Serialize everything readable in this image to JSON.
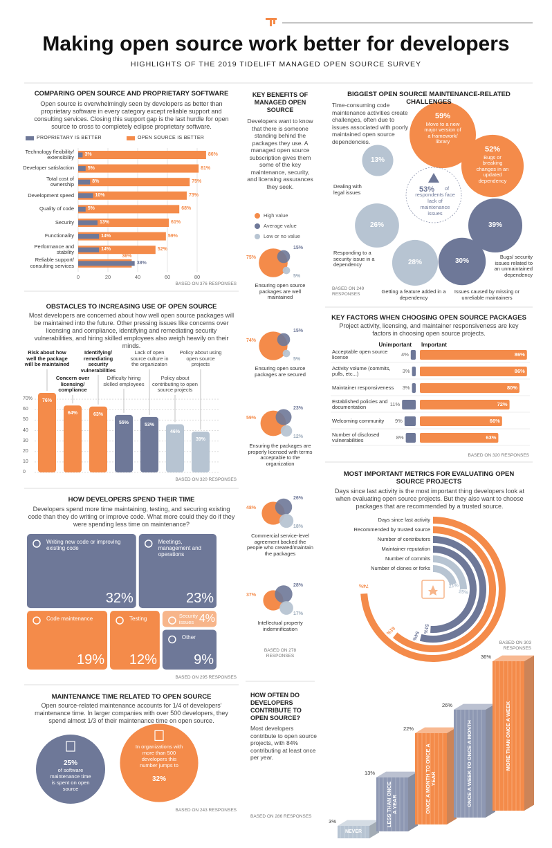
{
  "header": {
    "title": "Making open source work better for developers",
    "subtitle": "HIGHLIGHTS OF THE 2019 TIDELIFT MANAGED OPEN SOURCE SURVEY"
  },
  "comparison": {
    "type": "bar",
    "title": "COMPARING OPEN SOURCE AND PROPRIETARY SOFTWARE",
    "text": "Open source is overwhelmingly seen by developers as better than proprietary software in every category except reliable support and consulting services. Closing this support gap is the last hurdle for open source to cross to completely eclipse proprietary software.",
    "categories": [
      "Technology flexibility/ extensibility",
      "Developer satisfaction",
      "Total cost of ownership",
      "Development speed",
      "Quality of code",
      "Security",
      "Functionality",
      "Performance and stability",
      "Reliable support/ consulting services"
    ],
    "series": [
      {
        "name": "PROPRIETARY IS BETTER",
        "color": "#6e7898",
        "values": [
          3,
          5,
          8,
          10,
          5,
          13,
          14,
          14,
          38
        ],
        "value_labels": [
          "3%",
          "5%",
          "8%",
          "10%",
          "5%",
          "13%",
          "14%",
          "14%",
          "38%"
        ]
      },
      {
        "name": "OPEN SOURCE IS BETTER",
        "color": "#f48b4a",
        "values": [
          86,
          81,
          75,
          73,
          68,
          61,
          59,
          52,
          36
        ],
        "value_labels": [
          "86%",
          "81%",
          "75%",
          "73%",
          "68%",
          "61%",
          "59%",
          "52%",
          "36%"
        ]
      }
    ],
    "xlim": [
      0,
      90
    ],
    "xticks": [
      0,
      20,
      40,
      60,
      80
    ],
    "note": "BASED ON 376 RESPONSES"
  },
  "obstacles": {
    "type": "bar",
    "title": "OBSTACLES TO INCREASING USE OF OPEN SOURCE",
    "text": "Most developers are concerned about how well open source packages will be maintained into the future. Other pressing issues like concerns over licensing and compliance, identifying and remediating security vulnerabilities, and hiring skilled employees also weigh heavily on their minds.",
    "categories": [
      "Risk about how well the package will be maintained",
      "Concern over licensing/ compliance",
      "Identifying/ remediating security vulnerabilities",
      "Difficulty hiring skilled employees",
      "Lack of open source culture in the organizaton",
      "Policy about contributing to open source projects",
      "Policy about using open source projects"
    ],
    "values": [
      76,
      64,
      63,
      55,
      53,
      46,
      39
    ],
    "value_labels": [
      "76%",
      "64%",
      "63%",
      "55%",
      "53%",
      "46%",
      "39%"
    ],
    "colors": [
      "#f48b4a",
      "#f48b4a",
      "#f48b4a",
      "#6e7898",
      "#6e7898",
      "#b7c4d2",
      "#b7c4d2"
    ],
    "ylim": [
      0,
      80
    ],
    "yticks": [
      0,
      10,
      20,
      30,
      40,
      50,
      60,
      {
        "value": 70,
        "label": "70%"
      }
    ],
    "note": "BASED ON 320 RESPONSES"
  },
  "time": {
    "type": "treemap",
    "title": "HOW DEVELOPERS SPEND THEIR TIME",
    "text": "Developers spend more time maintaining, testing, and securing existing code than they do writing or improve code. What more could they do if they were spending less time on maintenance?",
    "categories": [
      "Writing new code or improving existing code",
      "Meetings, management and operations",
      "Code maintenance",
      "Testing",
      "Security issues",
      "Other"
    ],
    "values": [
      32,
      23,
      19,
      12,
      4,
      9
    ],
    "value_labels": [
      "32%",
      "23%",
      "19%",
      "12%",
      "4%",
      "9%"
    ],
    "colors": [
      "#6e7898",
      "#6e7898",
      "#f48b4a",
      "#f48b4a",
      "#f7b58a",
      "#6e7898"
    ],
    "note": "BASED ON 295 RESPONSES"
  },
  "maintenance": {
    "type": "bubble",
    "title": "MAINTENANCE TIME RELATED TO OPEN SOURCE",
    "text": "Open source-related maintenance accounts for 1/4 of developers' maintenance time. In larger companies with over 500 developers, they spend almost 1/3 of their maintenance time on open source.",
    "values": [
      25,
      32
    ],
    "value_labels": [
      "25%",
      "32%"
    ],
    "captions": [
      "of software maintenance time is spent on open source",
      "In organizations with more than 500 developers this number jumps to"
    ],
    "colors": [
      "#6e7898",
      "#f48b4a"
    ],
    "note": "BASED ON 243 RESPONSES"
  },
  "benefits": {
    "type": "bubble",
    "title": "KEY BENEFITS OF MANAGED OPEN SOURCE",
    "text": "Developers want to know that there is someone standing behind the packages they use. A managed open source subscription gives them some of the key maintenance, security, and licensing assurances they seek.",
    "categories": [
      "Ensuring open source packages are well maintained",
      "Ensuring open source packages are secured",
      "Ensuring the packages are properly licensed with terms acceptable to the organization",
      "Commercial service-level agreement backed the people who created/maintain the packages",
      "Intellectual property indemnification"
    ],
    "series": [
      {
        "name": "High value",
        "color": "#f48b4a",
        "values": [
          75,
          74,
          59,
          48,
          37
        ],
        "value_labels": [
          "75%",
          "74%",
          "59%",
          "48%",
          "37%"
        ]
      },
      {
        "name": "Average value",
        "color": "#6e7898",
        "values": [
          15,
          15,
          23,
          26,
          28
        ],
        "value_labels": [
          "15%",
          "15%",
          "23%",
          "26%",
          "28%"
        ]
      },
      {
        "name": "Low or no value",
        "color": "#b7c4d2",
        "values": [
          5,
          5,
          12,
          18,
          17
        ],
        "value_labels": [
          "5%",
          "5%",
          "12%",
          "18%",
          "17%"
        ]
      }
    ],
    "note": "BASED ON 278 RESPONSES"
  },
  "contribution": {
    "type": "bar",
    "title": "HOW OFTEN DO DEVELOPERS CONTRIBUTE TO OPEN SOURCE?",
    "text": "Most developers contribute to open source projects, with 84% contributing at least once per year.",
    "categories": [
      "NEVER",
      "LESS THAN ONCE A YEAR",
      "ONCE A MONTH TO ONCE A YEAR",
      "ONCE A WEEK TO ONCE A MONTH",
      "MORE THAN ONCE A WEEK"
    ],
    "values": [
      3,
      13,
      22,
      26,
      36
    ],
    "value_labels": [
      "3%",
      "13%",
      "22%",
      "26%",
      "36%"
    ],
    "colors": [
      "#b7c4d2",
      "#8e98b3",
      "#f48b4a",
      "#8e98b3",
      "#f48b4a"
    ],
    "note": "BASED ON 286 RESPONSES"
  },
  "challenges": {
    "type": "bubble",
    "title": "BIGGEST OPEN SOURCE MAINTENANCE-RELATED CHALLENGES",
    "text": "Time-consuming code maintenance activities create challenges, often due to issues associated with poorly maintained open source dependencies.",
    "summary": {
      "value": 53,
      "value_label": "53%",
      "text": "of respondents face lack of maintenance issues"
    },
    "categories": [
      "Move to a new major version of a framework/ library",
      "Bugs or breaking changes in an updated dependency",
      "Dealing with legal issues",
      "Responding to a security issue in a dependency",
      "Getting a feature added in a dependency",
      "Issues caused by missing or unreliable maintainers",
      "Bugs/ security issues related to an unmaintained dependency"
    ],
    "values": [
      59,
      52,
      13,
      26,
      28,
      30,
      39
    ],
    "value_labels": [
      "59%",
      "52%",
      "13%",
      "26%",
      "28%",
      "30%",
      "39%"
    ],
    "colors": [
      "#f48b4a",
      "#f48b4a",
      "#b7c4d2",
      "#b7c4d2",
      "#b7c4d2",
      "#6e7898",
      "#6e7898"
    ],
    "note": "BASED ON 249 RESPONSES"
  },
  "factors": {
    "type": "bar",
    "title": "KEY FACTORS WHEN CHOOSING OPEN SOURCE PACKAGES",
    "text": "Project activity, licensing, and maintainer responsiveness are key factors in choosing open source projects.",
    "categories": [
      "Acceptable open source license",
      "Activity volume (commits, pulls, etc...)",
      "Maintainer responsiveness",
      "Established policies and documentation",
      "Welcoming community",
      "Number of disclosed vulnerabilities"
    ],
    "series": [
      {
        "name": "Unimportant",
        "color": "#6e7898",
        "values": [
          4,
          3,
          3,
          11,
          9,
          8
        ],
        "value_labels": [
          "4%",
          "3%",
          "3%",
          "11%",
          "9%",
          "8%"
        ]
      },
      {
        "name": "Important",
        "color": "#f48b4a",
        "values": [
          86,
          86,
          80,
          72,
          66,
          63
        ],
        "value_labels": [
          "86%",
          "86%",
          "80%",
          "72%",
          "66%",
          "63%"
        ]
      }
    ],
    "note": "BASED ON 320 RESPONSES"
  },
  "metrics": {
    "type": "radial-bar",
    "title": "MOST IMPORTANT METRICS FOR EVALUATING OPEN SOURCE PROJECTS",
    "text": "Days since last activity is the most important thing developers look at when evaluating open source projects. But they also want to choose packages that are recommended by a trusted source.",
    "categories": [
      "Days since last activity",
      "Recommended by trusted source",
      "Number of contributors",
      "Maintainer reputation",
      "Number of commits",
      "Number of clones or forks"
    ],
    "values": [
      74,
      61,
      54,
      51,
      25,
      21
    ],
    "value_labels": [
      "74%",
      "61%",
      "54%",
      "51%",
      "25%",
      "21%"
    ],
    "colors": [
      "#f48b4a",
      "#f48b4a",
      "#6e7898",
      "#6e7898",
      "#b7c4d2",
      "#b7c4d2"
    ],
    "note": "BASED ON 303 RESPONSES"
  }
}
